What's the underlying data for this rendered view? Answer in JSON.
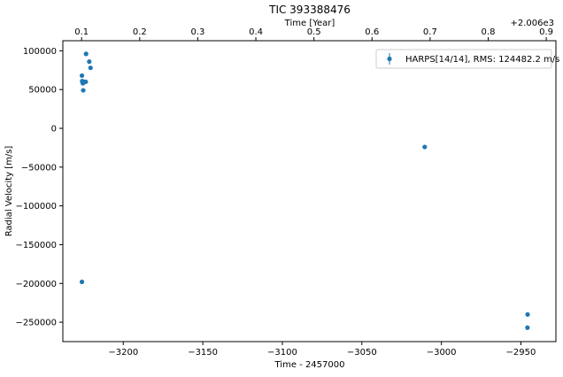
{
  "chart_data": {
    "type": "scatter",
    "title": "TIC 393388476",
    "xlabel": "Time - 2457000",
    "ylabel": "Radial Velocity [m/s]",
    "top_xlabel": "Time [Year]",
    "top_offset": "+2.006e3",
    "xlim": [
      -3238,
      -2928
    ],
    "ylim": [
      -275000,
      113000
    ],
    "top_xlim": [
      0.0677,
      0.9166
    ],
    "xticks": [
      -3200,
      -3150,
      -3100,
      -3050,
      -3000,
      -2950
    ],
    "xtick_labels": [
      "−3200",
      "−3150",
      "−3100",
      "−3050",
      "−3000",
      "−2950"
    ],
    "yticks": [
      100000,
      50000,
      0,
      -50000,
      -100000,
      -150000,
      -200000,
      -250000
    ],
    "ytick_labels": [
      "100000",
      "50000",
      "0",
      "−50000",
      "−100000",
      "−150000",
      "−200000",
      "−250000"
    ],
    "top_xticks": [
      0.1,
      0.2,
      0.3,
      0.4,
      0.5,
      0.6,
      0.7,
      0.8,
      0.9
    ],
    "top_xtick_labels": [
      "0.1",
      "0.2",
      "0.3",
      "0.4",
      "0.5",
      "0.6",
      "0.7",
      "0.8",
      "0.9"
    ],
    "grid": false,
    "legend_position": "top-right",
    "series": [
      {
        "name": "HARPS[14/14], RMS:  124482.2 m/s",
        "color": "#1f77b4",
        "x": [
          -3226,
          -3225.8,
          -3225.6,
          -3225.4,
          -3225.2,
          -3224.2,
          -3223.6,
          -3223.4,
          -3221.4,
          -3220.6,
          -3226,
          -3010.5,
          -2945.8,
          -2945.9
        ],
        "y": [
          68000,
          61000,
          59000,
          58000,
          49000,
          60000,
          60000,
          96000,
          86000,
          78000,
          -198000,
          -24000,
          -240000,
          -257000
        ]
      }
    ]
  }
}
